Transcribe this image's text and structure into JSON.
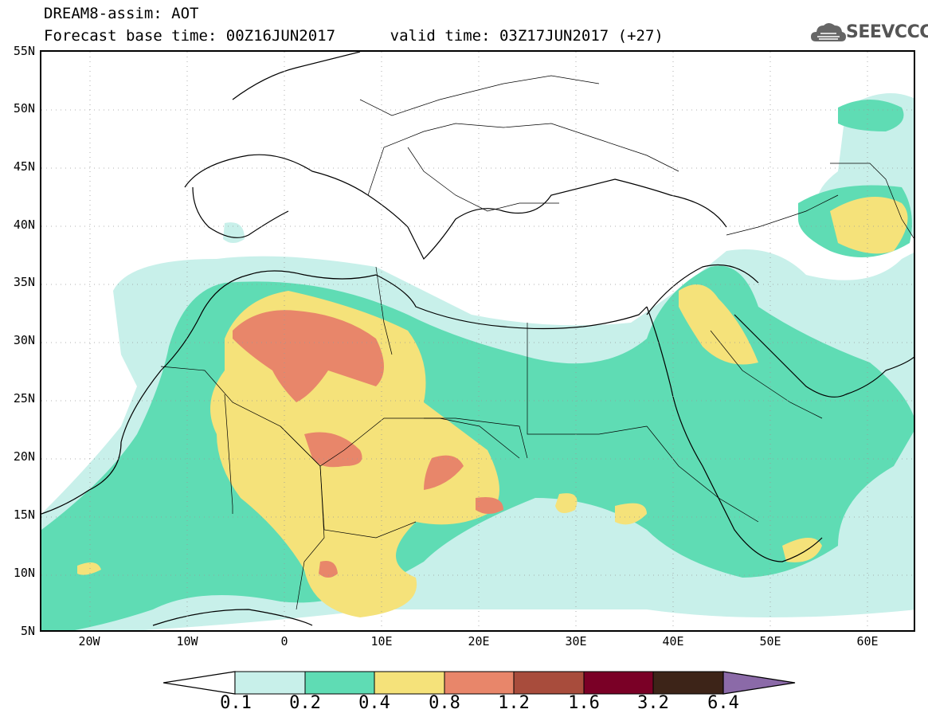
{
  "header": {
    "title_line1": "DREAM8-assim: AOT",
    "title_line2": "Forecast base time: 00Z16JUN2017      valid time: 03Z17JUN2017 (+27)",
    "logo_text": "SEEVCCC",
    "logo_icon": "cloud-icon"
  },
  "map": {
    "variable": "AOT",
    "lat_labels": [
      "55N",
      "50N",
      "45N",
      "40N",
      "35N",
      "30N",
      "25N",
      "20N",
      "15N",
      "10N",
      "5N"
    ],
    "lon_labels": [
      "20W",
      "10W",
      "0",
      "10E",
      "20E",
      "30E",
      "40E",
      "50E",
      "60E"
    ],
    "lat_range": [
      5,
      55
    ],
    "lon_range": [
      -25,
      65
    ]
  },
  "colorbar": {
    "labels": [
      "0.1",
      "0.2",
      "0.4",
      "0.8",
      "1.2",
      "1.6",
      "3.2",
      "6.4"
    ],
    "colors": [
      "#c8f0ea",
      "#5fdcb4",
      "#f5e27a",
      "#e8866a",
      "#a84c3c",
      "#7a0026",
      "#3d2418",
      "#8b6aa8"
    ],
    "under_color": "#ffffff"
  }
}
